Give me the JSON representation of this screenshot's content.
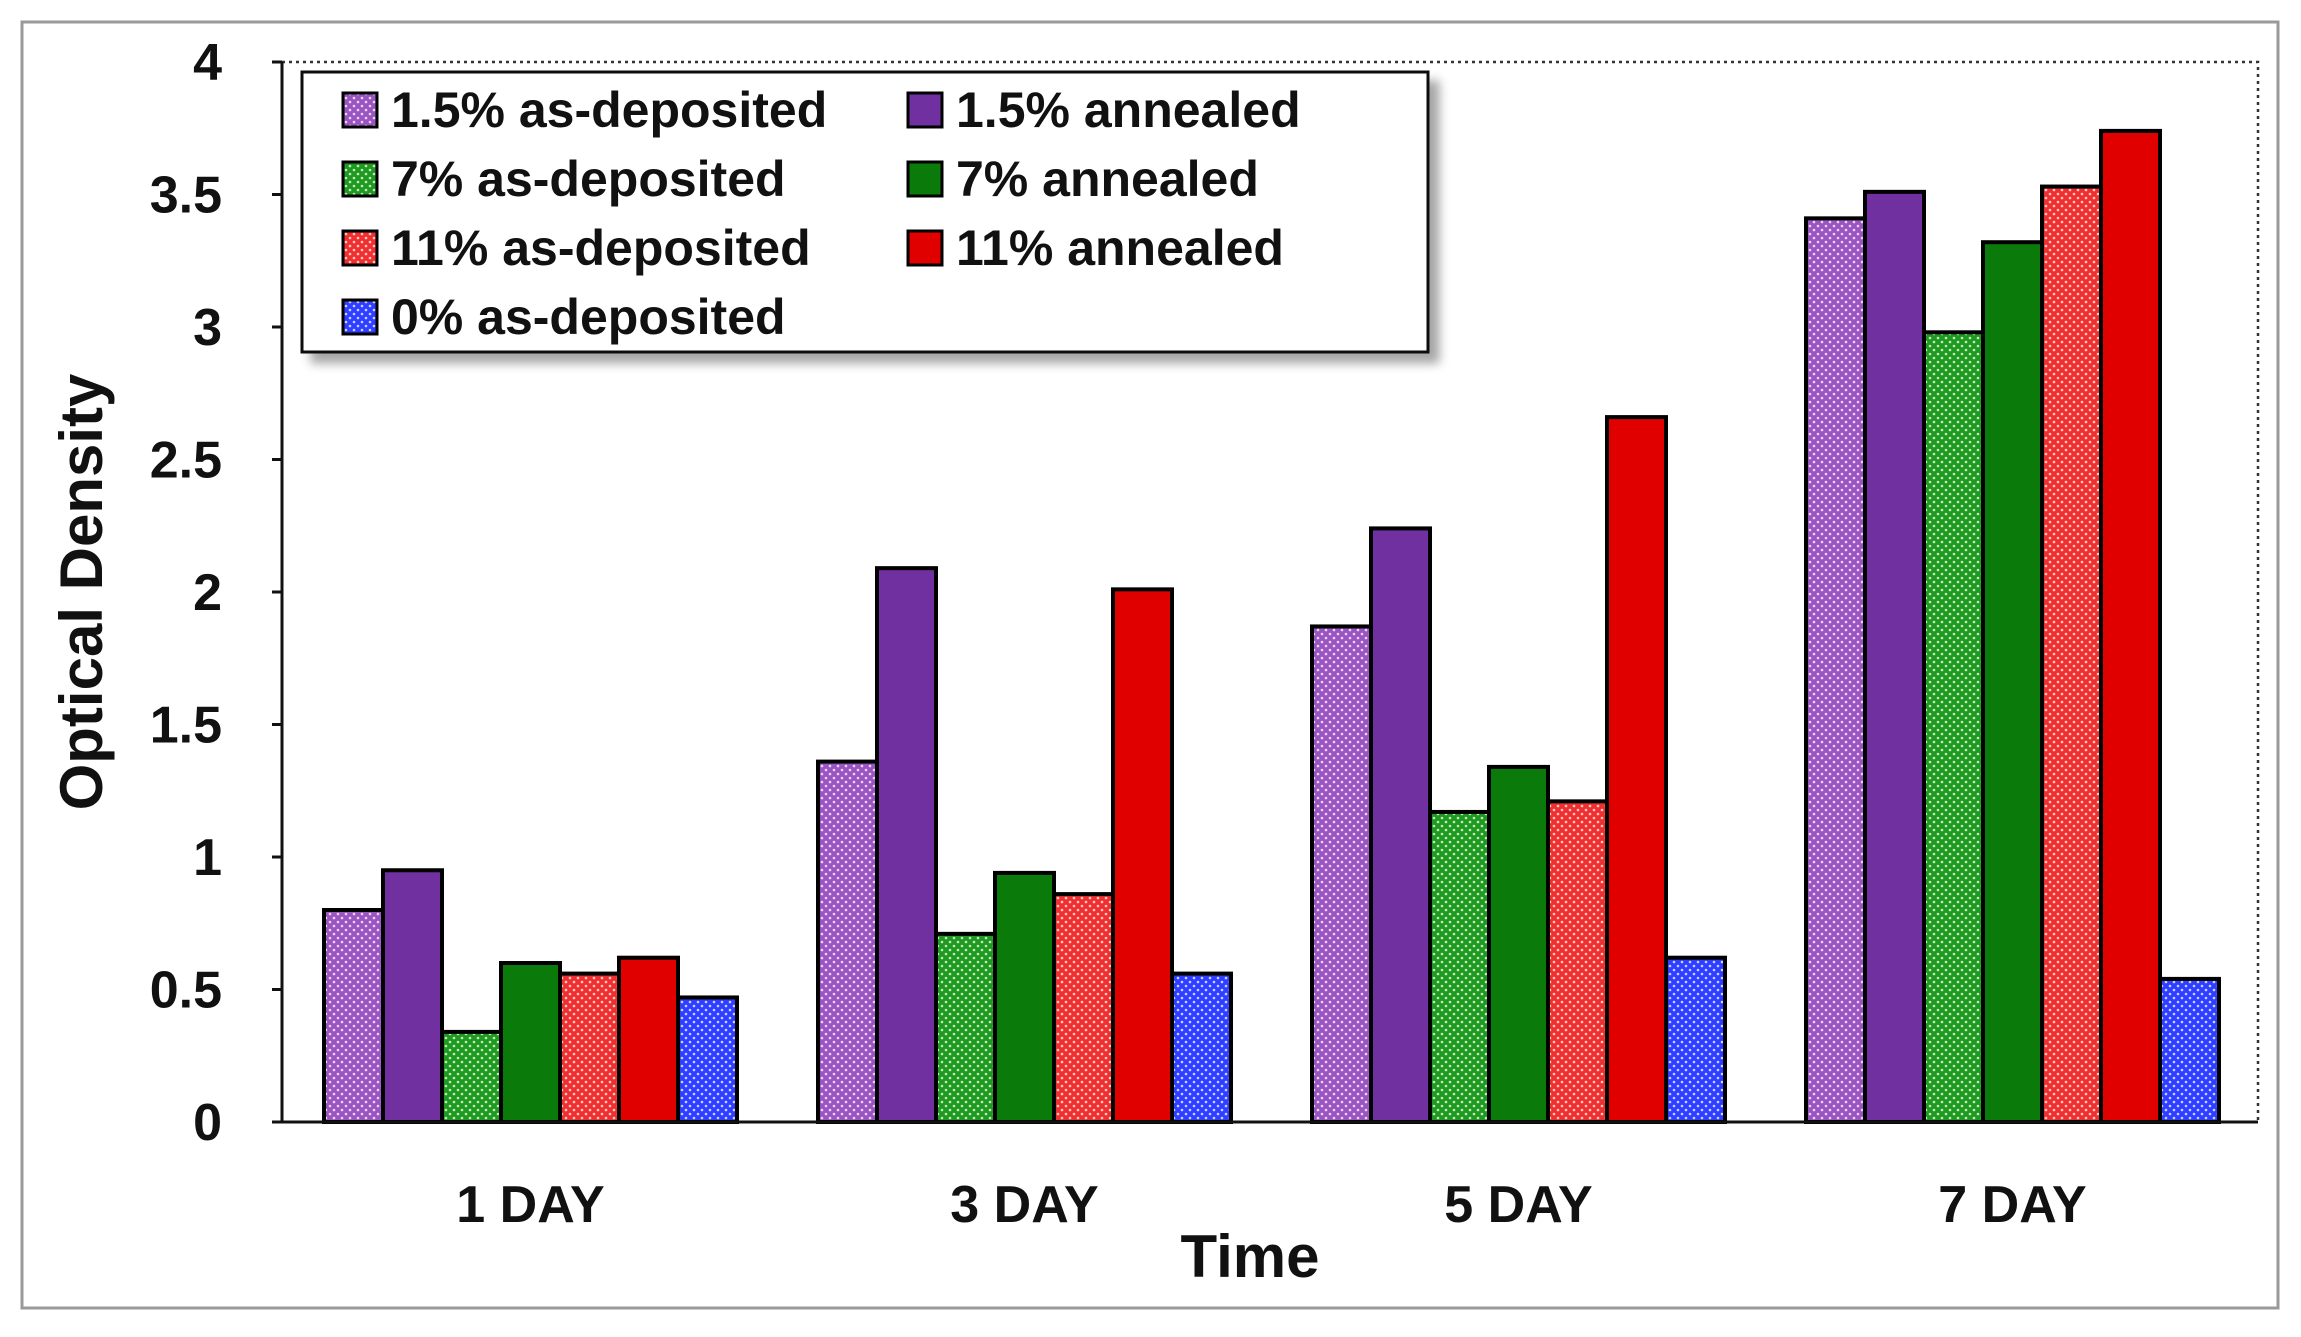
{
  "chart_data": {
    "type": "bar",
    "title": "",
    "xlabel": "Time",
    "ylabel": "Optical Density",
    "ylim": [
      0,
      4
    ],
    "yticks": [
      0,
      0.5,
      1,
      1.5,
      2,
      2.5,
      3,
      3.5,
      4
    ],
    "ytick_labels": [
      "0",
      "0.5",
      "1",
      "1.5",
      "2",
      "2.5",
      "3",
      "3.5",
      "4"
    ],
    "categories": [
      "1 DAY",
      "3 DAY",
      "5 DAY",
      "7 DAY"
    ],
    "legend_position": "top-left",
    "series": [
      {
        "name": "1.5% as-deposited",
        "color": "#9B55C2",
        "pattern": "dotted",
        "values": [
          0.8,
          1.36,
          1.87,
          3.41
        ]
      },
      {
        "name": "1.5% annealed",
        "color": "#7030A0",
        "pattern": "solid",
        "values": [
          0.95,
          2.09,
          2.24,
          3.51
        ]
      },
      {
        "name": "7% as-deposited",
        "color": "#1E9A1E",
        "pattern": "dotted",
        "values": [
          0.34,
          0.71,
          1.17,
          2.98
        ]
      },
      {
        "name": "7% annealed",
        "color": "#0A7A0A",
        "pattern": "solid",
        "values": [
          0.6,
          0.94,
          1.34,
          3.32
        ]
      },
      {
        "name": "11% as-deposited",
        "color": "#F03030",
        "pattern": "dotted",
        "values": [
          0.56,
          0.86,
          1.21,
          3.53
        ]
      },
      {
        "name": "11% annealed",
        "color": "#E00000",
        "pattern": "solid",
        "values": [
          0.62,
          2.01,
          2.66,
          3.74
        ]
      },
      {
        "name": "0% as-deposited",
        "color": "#2F3FFF",
        "pattern": "dotted",
        "values": [
          0.47,
          0.56,
          0.62,
          0.54
        ]
      }
    ]
  }
}
